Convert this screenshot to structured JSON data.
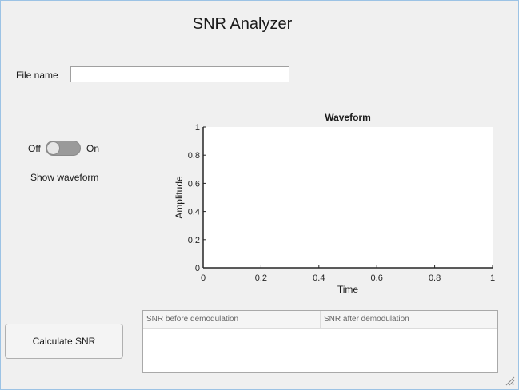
{
  "app": {
    "title": "SNR Analyzer"
  },
  "file": {
    "label": "File name",
    "value": ""
  },
  "toggle": {
    "off_label": "Off",
    "on_label": "On",
    "caption": "Show waveform",
    "state": "Off"
  },
  "chart_data": {
    "type": "line",
    "title": "Waveform",
    "xlabel": "Time",
    "ylabel": "Amplitude",
    "xlim": [
      0,
      1
    ],
    "ylim": [
      0,
      1
    ],
    "xticks": [
      0,
      0.2,
      0.4,
      0.6,
      0.8,
      1
    ],
    "xtick_labels": [
      "0",
      "0.2",
      "0.4",
      "0.6",
      "0.8",
      "1"
    ],
    "yticks": [
      0,
      0.2,
      0.4,
      0.6,
      0.8,
      1
    ],
    "ytick_labels": [
      "0",
      "0.2",
      "0.4",
      "0.6",
      "0.8",
      "1"
    ],
    "grid": false,
    "series": []
  },
  "actions": {
    "calculate_label": "Calculate SNR"
  },
  "results_table": {
    "columns": [
      "SNR before demodulation",
      "SNR after demodulation"
    ],
    "rows": []
  }
}
